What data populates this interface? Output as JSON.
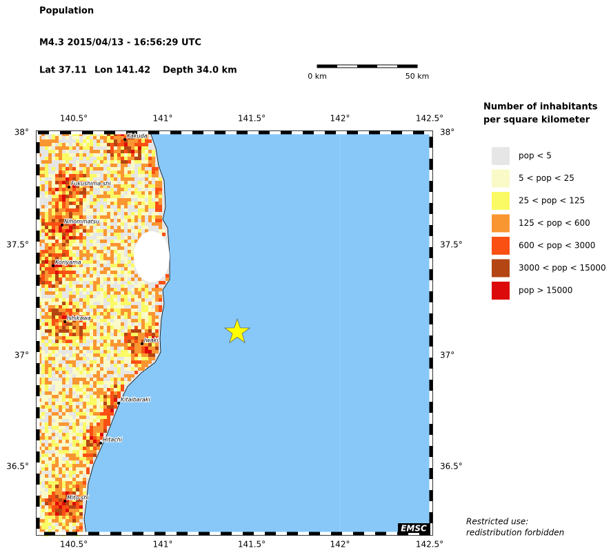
{
  "header": {
    "title": "Population",
    "event": "M4.3  2015/04/13 - 16:56:29 UTC",
    "lat": "Lat 37.11",
    "lon": "Lon 141.42",
    "depth": "Depth  34.0 km"
  },
  "scale_bar": {
    "start": "0 km",
    "end": "50 km"
  },
  "map": {
    "lon_ticks": [
      "140.5°",
      "141°",
      "141.5°",
      "142°",
      "142.5°"
    ],
    "lat_ticks": [
      "38°",
      "37.5°",
      "37°",
      "36.5°"
    ],
    "cities": [
      "Kakuda",
      "Fukushima-shi",
      "Nihommatsu",
      "Koriyama",
      "Ishikawa",
      "Iwaki",
      "Kitaibaraki",
      "Hitachi",
      "Mito-shi"
    ],
    "credit": "EMSC"
  },
  "legend": {
    "title": [
      "Number of inhabitants",
      "per square kilometer"
    ],
    "entries": [
      {
        "label": "pop < 5",
        "color": "#e6e6e6"
      },
      {
        "label": "5 < pop < 25",
        "color": "#fafac8"
      },
      {
        "label": "25 < pop < 125",
        "color": "#fafa64"
      },
      {
        "label": "125 < pop < 600",
        "color": "#fa9632"
      },
      {
        "label": "600 < pop < 3000",
        "color": "#fa5014"
      },
      {
        "label": "3000 < pop < 15000",
        "color": "#b44614"
      },
      {
        "label": "pop > 15000",
        "color": "#dc0a0a"
      }
    ]
  },
  "notice": [
    "Restricted use:",
    "redistribution forbidden"
  ]
}
